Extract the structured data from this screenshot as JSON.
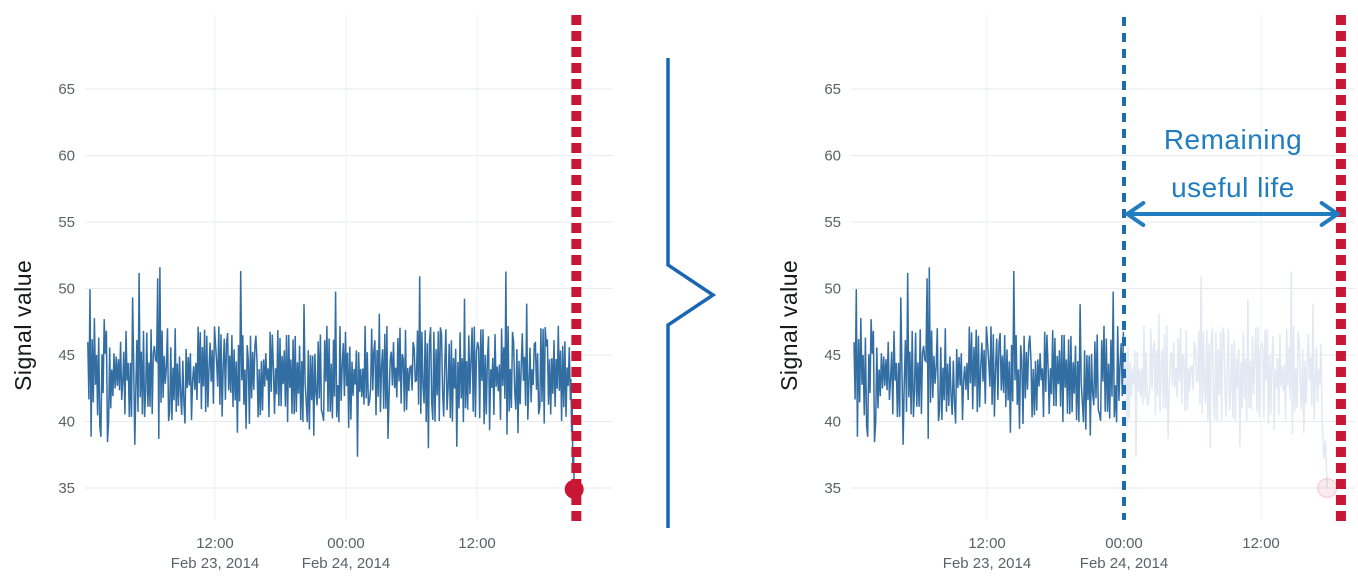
{
  "figure": {
    "background": "#ffffff",
    "connector": {
      "shape": "right-pointing-chevron-brace",
      "color": "#1b66b3"
    }
  },
  "colors": {
    "signal_blue": "#336ea3",
    "faded_signal": "#e2e9f3",
    "failure_red": "#c81734",
    "current_time_blue": "#1e6bb0",
    "annotation_blue": "#1f7dc0",
    "tick_gray": "#5a6168",
    "gridline": "#e7eaee",
    "v_gridline": "#eef1f4"
  },
  "chart_data": [
    {
      "id": "full-signal-until-failure",
      "type": "line",
      "title": "",
      "xlabel": "",
      "ylabel": "Signal value",
      "ylim": [
        32.6,
        70.6
      ],
      "yticks": [
        35,
        40,
        45,
        50,
        55,
        60,
        65
      ],
      "x_unit": "hours since Feb 23, 2014 00:00",
      "xlim": [
        0,
        48.4
      ],
      "xticks": [
        {
          "hour": 12,
          "time": "12:00",
          "date": "Feb 23, 2014"
        },
        {
          "hour": 24,
          "time": "00:00",
          "date": "Feb 24, 2014"
        },
        {
          "hour": 36,
          "time": "12:00",
          "date": ""
        }
      ],
      "grid": true,
      "legend": "none",
      "series": [
        {
          "name": "signal",
          "color": "#336ea3",
          "mean": 43.5,
          "typical_band": [
            39.8,
            47.3
          ],
          "spike_high": 51.6,
          "spike_low": 37.3,
          "start_hour": 0.35,
          "end_hour": 44.5,
          "sample_step_hours": 0.1,
          "seed": 20140223
        }
      ],
      "failure_drop_points": [
        [
          44.55,
          41.6
        ],
        [
          44.6,
          43.2
        ],
        [
          44.66,
          39.2
        ],
        [
          44.72,
          41.2
        ],
        [
          44.78,
          36.2
        ],
        [
          44.84,
          38.0
        ],
        [
          44.9,
          34.9
        ]
      ],
      "failure_marker": {
        "hour": 44.9,
        "value": 34.9,
        "color": "#c81734",
        "radius_px": 9.5
      },
      "failure_line": {
        "hour": 45.1,
        "color": "#c81734",
        "style": "dotted"
      }
    },
    {
      "id": "rul-prediction",
      "type": "line",
      "title": "",
      "xlabel": "",
      "ylabel": "Signal value",
      "ylim": [
        32.6,
        70.6
      ],
      "yticks": [
        35,
        40,
        45,
        50,
        55,
        60,
        65
      ],
      "x_unit": "hours since Feb 23, 2014 00:00",
      "xlim": [
        0,
        44.3
      ],
      "xticks": [
        {
          "hour": 12,
          "time": "12:00",
          "date": "Feb 23, 2014"
        },
        {
          "hour": 24,
          "time": "00:00",
          "date": "Feb 24, 2014"
        },
        {
          "hour": 36,
          "time": "12:00",
          "date": ""
        }
      ],
      "grid": true,
      "legend": "none",
      "series": [
        {
          "name": "observed signal",
          "color": "#336ea3",
          "mean": 43.5,
          "typical_band": [
            39.8,
            47.3
          ],
          "spike_high": 51.6,
          "spike_low": 37.3,
          "start_hour": 0.35,
          "end_hour": 24.0,
          "sample_step_hours": 0.1,
          "seed": 20140223
        },
        {
          "name": "predicted future signal",
          "color": "#e2e9f3",
          "mean": 43.5,
          "start_hour": 24.0,
          "end_hour": 41.3,
          "sample_step_hours": 0.1
        }
      ],
      "current_time_line": {
        "hour": 24,
        "color": "#1e6bb0",
        "style": "dashed"
      },
      "failure_line": {
        "hour": 43,
        "color": "#c81734",
        "style": "dotted"
      },
      "faded_failure_drop_points": [
        [
          41.35,
          40.0
        ],
        [
          41.5,
          37.2
        ],
        [
          41.65,
          38.6
        ],
        [
          41.8,
          35.0
        ]
      ],
      "faded_failure_marker": {
        "hour": 41.8,
        "value": 35.0,
        "color": "#c81734",
        "opacity": 0.14,
        "radius_px": 9.5
      },
      "rul_annotation": {
        "line1": "Remaining",
        "line2": "useful life",
        "color": "#1f7dc0",
        "arrow_from_hour": 24.2,
        "arrow_to_hour": 42.8,
        "arrow_value": 55.6
      }
    }
  ]
}
